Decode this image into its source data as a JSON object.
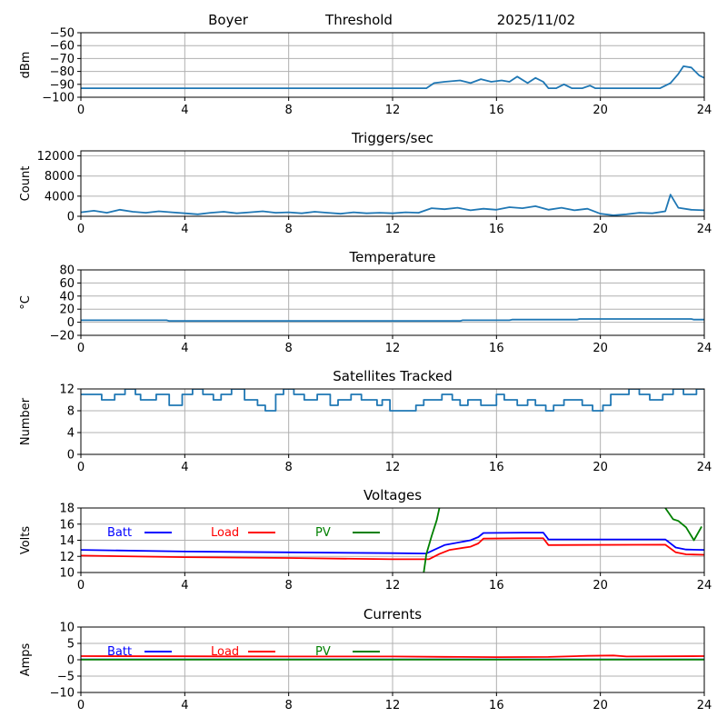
{
  "header": {
    "station": "Boyer",
    "mode": "Threshold",
    "date": "2025/11/02"
  },
  "colors": {
    "series": "#1f77b4",
    "grid": "#b0b0b0",
    "batt": "#0000ff",
    "load": "#ff0000",
    "pv": "#008000"
  },
  "chart_data": [
    {
      "type": "line",
      "title": "",
      "xlabel": "",
      "ylabel": "dBm",
      "xlim": [
        0,
        24
      ],
      "ylim": [
        -100,
        -50
      ],
      "xticks": [
        "0",
        "4",
        "8",
        "12",
        "16",
        "20",
        "24"
      ],
      "yticks": [
        -100,
        -90,
        -80,
        -70,
        -60,
        -50
      ],
      "ytick_labels": [
        "−100",
        "−90",
        "−80",
        "−70",
        "−60",
        "−50"
      ],
      "series": [
        {
          "name": "Threshold",
          "x": [
            0,
            13.3,
            13.6,
            14.0,
            14.6,
            15.0,
            15.4,
            15.8,
            16.2,
            16.5,
            16.8,
            17.2,
            17.5,
            17.8,
            18.0,
            18.3,
            18.6,
            18.9,
            19.3,
            19.6,
            19.8,
            20.2,
            22.3,
            22.7,
            23.0,
            23.2,
            23.5,
            23.8,
            24
          ],
          "y": [
            -93,
            -93,
            -89,
            -88,
            -87,
            -89,
            -86,
            -88,
            -87,
            -88,
            -84,
            -89,
            -85,
            -88,
            -93,
            -93,
            -90,
            -93,
            -93,
            -91,
            -93,
            -93,
            -93,
            -89,
            -82,
            -76,
            -77,
            -83,
            -85
          ]
        }
      ]
    },
    {
      "type": "line",
      "title": "Triggers/sec",
      "xlabel": "",
      "ylabel": "Count",
      "xlim": [
        0,
        24
      ],
      "ylim": [
        0,
        13000
      ],
      "xticks": [
        "0",
        "4",
        "8",
        "12",
        "16",
        "20",
        "24"
      ],
      "yticks": [
        0,
        4000,
        8000,
        12000
      ],
      "ytick_labels": [
        "0",
        "4000",
        "8000",
        "12000"
      ],
      "series": [
        {
          "name": "Triggers",
          "x": [
            0,
            0.5,
            1.0,
            1.5,
            2.0,
            2.5,
            3.0,
            3.5,
            4.0,
            4.5,
            5.0,
            5.5,
            6.0,
            6.5,
            7.0,
            7.5,
            8.0,
            8.5,
            9.0,
            9.5,
            10.0,
            10.5,
            11.0,
            11.5,
            12.0,
            12.5,
            13.0,
            13.5,
            14.0,
            14.5,
            15.0,
            15.5,
            16.0,
            16.5,
            17.0,
            17.5,
            18.0,
            18.5,
            19.0,
            19.5,
            20.0,
            20.5,
            21.0,
            21.5,
            22.0,
            22.5,
            22.7,
            23.0,
            23.5,
            24
          ],
          "y": [
            800,
            1100,
            700,
            1300,
            900,
            700,
            1000,
            800,
            600,
            400,
            700,
            900,
            600,
            800,
            1000,
            700,
            800,
            600,
            900,
            700,
            500,
            800,
            600,
            700,
            600,
            800,
            700,
            1600,
            1400,
            1700,
            1200,
            1500,
            1300,
            1800,
            1600,
            2000,
            1300,
            1700,
            1200,
            1500,
            500,
            200,
            400,
            700,
            600,
            1000,
            4300,
            1700,
            1300,
            1200
          ]
        }
      ]
    },
    {
      "type": "line",
      "title": "Temperature",
      "xlabel": "",
      "ylabel": "°C",
      "xlim": [
        0,
        24
      ],
      "ylim": [
        -20,
        80
      ],
      "xticks": [
        "0",
        "4",
        "8",
        "12",
        "16",
        "20",
        "24"
      ],
      "yticks": [
        -20,
        0,
        20,
        40,
        60,
        80
      ],
      "ytick_labels": [
        "−20",
        "0",
        "20",
        "40",
        "60",
        "80"
      ],
      "series": [
        {
          "name": "Temperature",
          "x": [
            0,
            3.3,
            3.4,
            14.6,
            14.7,
            16.5,
            16.6,
            19.1,
            19.2,
            23.5,
            23.6,
            24
          ],
          "y": [
            3,
            3,
            2,
            2,
            3,
            3,
            4,
            4,
            5,
            5,
            4,
            4
          ]
        }
      ]
    },
    {
      "type": "line",
      "title": "Satellites Tracked",
      "xlabel": "",
      "ylabel": "Number",
      "xlim": [
        0,
        24
      ],
      "ylim": [
        0,
        12
      ],
      "xticks": [
        "0",
        "4",
        "8",
        "12",
        "16",
        "20",
        "24"
      ],
      "yticks": [
        0,
        4,
        8,
        12
      ],
      "ytick_labels": [
        "0",
        "4",
        "8",
        "12"
      ],
      "series": [
        {
          "name": "Satellites",
          "x": [
            0,
            0.8,
            0.8,
            1.3,
            1.3,
            1.7,
            1.7,
            2.1,
            2.1,
            2.3,
            2.3,
            2.9,
            2.9,
            3.4,
            3.4,
            3.9,
            3.9,
            4.3,
            4.3,
            4.7,
            4.7,
            5.1,
            5.1,
            5.4,
            5.4,
            5.8,
            5.8,
            6.3,
            6.3,
            6.8,
            6.8,
            7.1,
            7.1,
            7.5,
            7.5,
            7.8,
            7.8,
            8.2,
            8.2,
            8.6,
            8.6,
            9.1,
            9.1,
            9.6,
            9.6,
            9.9,
            9.9,
            10.4,
            10.4,
            10.8,
            10.8,
            11.4,
            11.4,
            11.6,
            11.6,
            11.9,
            11.9,
            12.9,
            12.9,
            13.2,
            13.2,
            13.9,
            13.9,
            14.3,
            14.3,
            14.6,
            14.6,
            14.9,
            14.9,
            15.4,
            15.4,
            16.0,
            16.0,
            16.3,
            16.3,
            16.8,
            16.8,
            17.2,
            17.2,
            17.5,
            17.5,
            17.9,
            17.9,
            18.2,
            18.2,
            18.6,
            18.6,
            19.3,
            19.3,
            19.7,
            19.7,
            20.1,
            20.1,
            20.4,
            20.4,
            21.1,
            21.1,
            21.5,
            21.5,
            21.9,
            21.9,
            22.4,
            22.4,
            22.8,
            22.8,
            23.2,
            23.2,
            23.7,
            23.7,
            24
          ],
          "y": [
            11,
            11,
            10,
            10,
            11,
            11,
            12,
            12,
            11,
            11,
            10,
            10,
            11,
            11,
            9,
            9,
            11,
            11,
            12,
            12,
            11,
            11,
            10,
            10,
            11,
            11,
            12,
            12,
            10,
            10,
            9,
            9,
            8,
            8,
            11,
            11,
            12,
            12,
            11,
            11,
            10,
            10,
            11,
            11,
            9,
            9,
            10,
            10,
            11,
            11,
            10,
            10,
            9,
            9,
            10,
            10,
            8,
            8,
            9,
            9,
            10,
            10,
            11,
            11,
            10,
            10,
            9,
            9,
            10,
            10,
            9,
            9,
            11,
            11,
            10,
            10,
            9,
            9,
            10,
            10,
            9,
            9,
            8,
            8,
            9,
            9,
            10,
            10,
            9,
            9,
            8,
            8,
            9,
            9,
            11,
            11,
            12,
            12,
            11,
            11,
            10,
            10,
            11,
            11,
            12,
            12,
            11,
            11,
            12,
            12
          ]
        }
      ]
    },
    {
      "type": "line",
      "title": "Voltages",
      "xlabel": "",
      "ylabel": "Volts",
      "xlim": [
        0,
        24
      ],
      "ylim": [
        10,
        18
      ],
      "xticks": [
        "0",
        "4",
        "8",
        "12",
        "16",
        "20",
        "24"
      ],
      "yticks": [
        10,
        12,
        14,
        16,
        18
      ],
      "ytick_labels": [
        "10",
        "12",
        "14",
        "16",
        "18"
      ],
      "legend": [
        "Batt",
        "Load",
        "PV"
      ],
      "series": [
        {
          "name": "Batt",
          "color": "#0000ff",
          "x": [
            0,
            4,
            8,
            12,
            13.3,
            13.6,
            14.0,
            15.0,
            15.3,
            15.5,
            17.0,
            17.8,
            18.0,
            22.5,
            22.9,
            23.3,
            24
          ],
          "y": [
            12.8,
            12.6,
            12.5,
            12.4,
            12.35,
            12.8,
            13.4,
            14.0,
            14.4,
            14.9,
            14.95,
            14.95,
            14.1,
            14.1,
            13.1,
            12.85,
            12.8
          ]
        },
        {
          "name": "Load",
          "color": "#ff0000",
          "x": [
            0,
            4,
            8,
            12,
            13.4,
            13.8,
            14.2,
            15.0,
            15.3,
            15.5,
            17.0,
            17.8,
            18.0,
            22.5,
            22.9,
            23.3,
            24
          ],
          "y": [
            12.1,
            11.9,
            11.8,
            11.65,
            11.65,
            12.3,
            12.8,
            13.2,
            13.6,
            14.2,
            14.25,
            14.25,
            13.4,
            13.45,
            12.5,
            12.25,
            12.2
          ]
        },
        {
          "name": "PV",
          "color": "#008000",
          "x": [
            13.2,
            13.3,
            13.5,
            13.7,
            13.8
          ],
          "y": [
            10.0,
            12.3,
            14.5,
            16.5,
            18.0
          ],
          "x2": [
            22.5,
            22.8,
            23.0,
            23.3,
            23.6,
            23.9
          ],
          "y2": [
            18.0,
            16.6,
            16.4,
            15.6,
            14.0,
            15.7
          ]
        }
      ]
    },
    {
      "type": "line",
      "title": "Currents",
      "xlabel": "",
      "ylabel": "Amps",
      "xlim": [
        0,
        24
      ],
      "ylim": [
        -10,
        10
      ],
      "xticks": [
        "0",
        "4",
        "8",
        "12",
        "16",
        "20",
        "24"
      ],
      "yticks": [
        -10,
        -5,
        0,
        5,
        10
      ],
      "ytick_labels": [
        "−10",
        "−5",
        "0",
        "5",
        "10"
      ],
      "legend": [
        "Batt",
        "Load",
        "PV"
      ],
      "series": [
        {
          "name": "Batt",
          "color": "#0000ff",
          "x": [
            0,
            24
          ],
          "y": [
            0.1,
            0.1
          ]
        },
        {
          "name": "Load",
          "color": "#ff0000",
          "x": [
            0,
            4,
            8,
            12,
            14,
            16,
            18,
            19.5,
            20.5,
            21,
            24
          ],
          "y": [
            1.1,
            1.05,
            1.0,
            1.0,
            0.9,
            0.8,
            0.85,
            1.2,
            1.3,
            1.0,
            1.1
          ]
        },
        {
          "name": "PV",
          "color": "#008000",
          "x": [
            0,
            24
          ],
          "y": [
            0.05,
            0.05
          ]
        }
      ]
    }
  ]
}
